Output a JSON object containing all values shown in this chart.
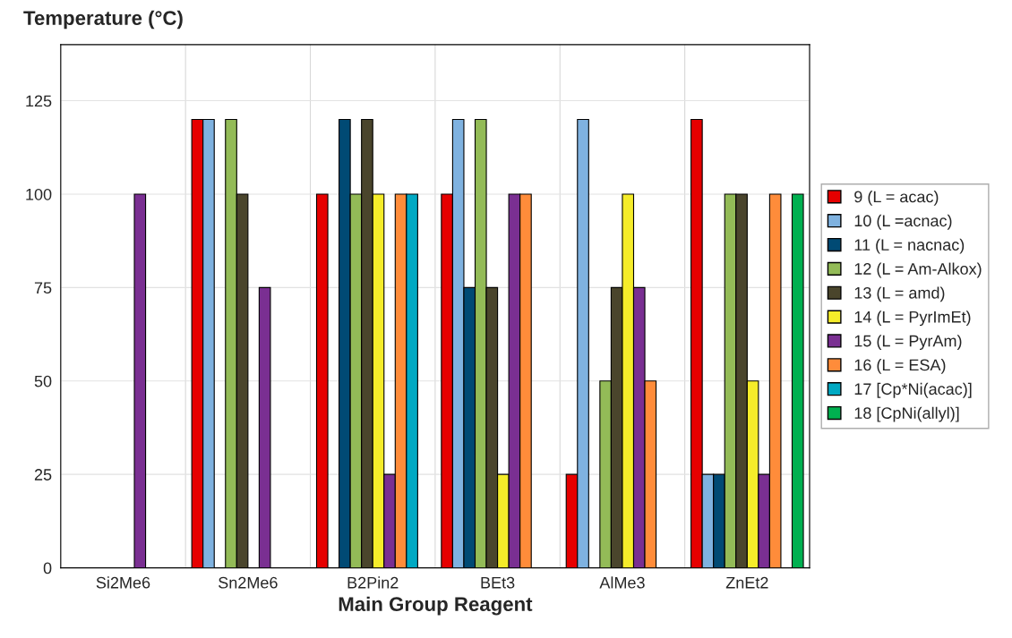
{
  "chart_data": {
    "type": "bar",
    "ylabel": "Temperature (°C)",
    "xlabel": "Main Group Reagent",
    "categories": [
      "Si2Me6",
      "Sn2Me6",
      "B2Pin2",
      "BEt3",
      "AlMe3",
      "ZnEt2"
    ],
    "series": [
      {
        "name": "9 (L = acac)",
        "color": "#e60000",
        "values": [
          null,
          120,
          100,
          100,
          25,
          120
        ]
      },
      {
        "name": "10 (L =acnac)",
        "color": "#7fb2e0",
        "values": [
          null,
          120,
          null,
          120,
          120,
          25
        ]
      },
      {
        "name": "11 (L = nacnac)",
        "color": "#004a74",
        "values": [
          null,
          null,
          120,
          75,
          null,
          25
        ]
      },
      {
        "name": "12 (L = Am-Alkox)",
        "color": "#93bb57",
        "values": [
          null,
          120,
          100,
          120,
          50,
          100
        ]
      },
      {
        "name": "13 (L = amd)",
        "color": "#4a452c",
        "values": [
          null,
          100,
          120,
          75,
          75,
          100
        ]
      },
      {
        "name": "14 (L = PyrImEt)",
        "color": "#f5ec2a",
        "values": [
          null,
          null,
          100,
          25,
          100,
          50
        ]
      },
      {
        "name": "15 (L = PyrAm)",
        "color": "#7a2f92",
        "values": [
          100,
          75,
          25,
          100,
          75,
          25
        ]
      },
      {
        "name": "16 (L = ESA)",
        "color": "#ff8c3a",
        "values": [
          null,
          null,
          100,
          100,
          50,
          100
        ]
      },
      {
        "name": "17 [Cp*Ni(acac)]",
        "color": "#00a9c3",
        "values": [
          null,
          null,
          100,
          null,
          null,
          null
        ]
      },
      {
        "name": "18 [CpNi(allyl)]",
        "color": "#00b050",
        "values": [
          null,
          null,
          null,
          null,
          null,
          100
        ]
      }
    ],
    "ylim": [
      0,
      140
    ],
    "yticks": [
      0,
      25,
      50,
      75,
      100,
      125
    ],
    "grid": true,
    "legend": "right"
  }
}
